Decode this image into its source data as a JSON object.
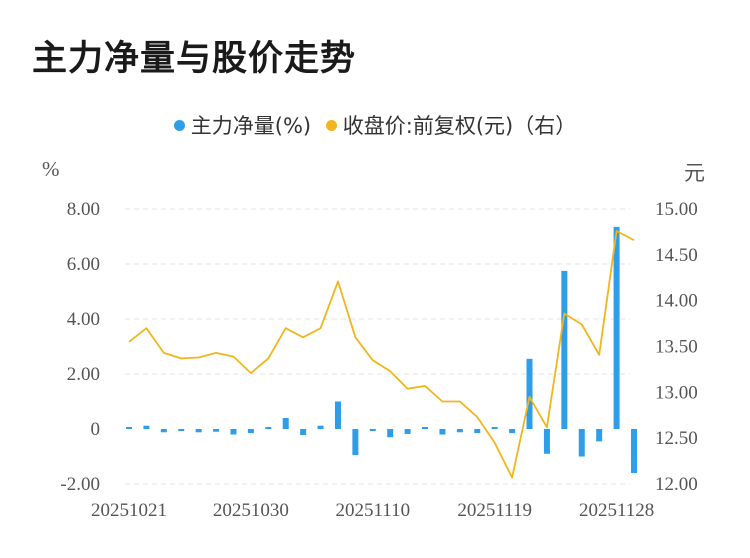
{
  "title": "主力净量与股价走势",
  "legend": [
    {
      "label": "主力净量(%)",
      "color": "#2f9ee8"
    },
    {
      "label": "收盘价:前复权(元)（右）",
      "color": "#f2b51d"
    }
  ],
  "chart_data": {
    "type": "bar+line",
    "title": "主力净量与股价走势",
    "y_left_unit": "%",
    "y_right_unit": "元",
    "y_left_ticks": [
      "8.00",
      "6.00",
      "4.00",
      "2.00",
      "0",
      "-2.00"
    ],
    "y_right_ticks": [
      "15.00",
      "14.50",
      "14.00",
      "13.50",
      "13.00",
      "12.50",
      "12.00"
    ],
    "ylim_left": [
      -2,
      8
    ],
    "ylim_right": [
      12,
      15
    ],
    "x_tick_labels": [
      "20251021",
      "20251030",
      "20251110",
      "20251119",
      "20251128"
    ],
    "x_tick_indices": [
      0,
      7,
      14,
      21,
      28
    ],
    "grid": true,
    "legend_position": "top-center",
    "series": [
      {
        "name": "主力净量(%)",
        "kind": "bar",
        "color": "#2f9ee8",
        "values": [
          0.05,
          0.12,
          -0.12,
          -0.05,
          -0.12,
          -0.1,
          -0.2,
          -0.15,
          0.05,
          0.4,
          -0.22,
          0.12,
          1.0,
          -0.95,
          -0.05,
          -0.3,
          -0.18,
          0.0,
          -0.2,
          -0.12,
          -0.15,
          0.0,
          -0.15,
          2.55,
          -0.9,
          5.75,
          -1.0,
          -0.45,
          7.35,
          -1.6
        ]
      },
      {
        "name": "收盘价:前复权(元)（右）",
        "kind": "line",
        "color": "#f2b51d",
        "values": [
          13.55,
          13.7,
          13.43,
          13.37,
          13.38,
          13.43,
          13.39,
          13.21,
          13.37,
          13.7,
          13.6,
          13.7,
          14.21,
          13.6,
          13.35,
          13.23,
          13.04,
          13.07,
          12.9,
          12.9,
          12.73,
          12.45,
          12.07,
          12.95,
          12.62,
          13.86,
          13.74,
          13.41,
          14.76,
          14.66
        ]
      }
    ]
  }
}
